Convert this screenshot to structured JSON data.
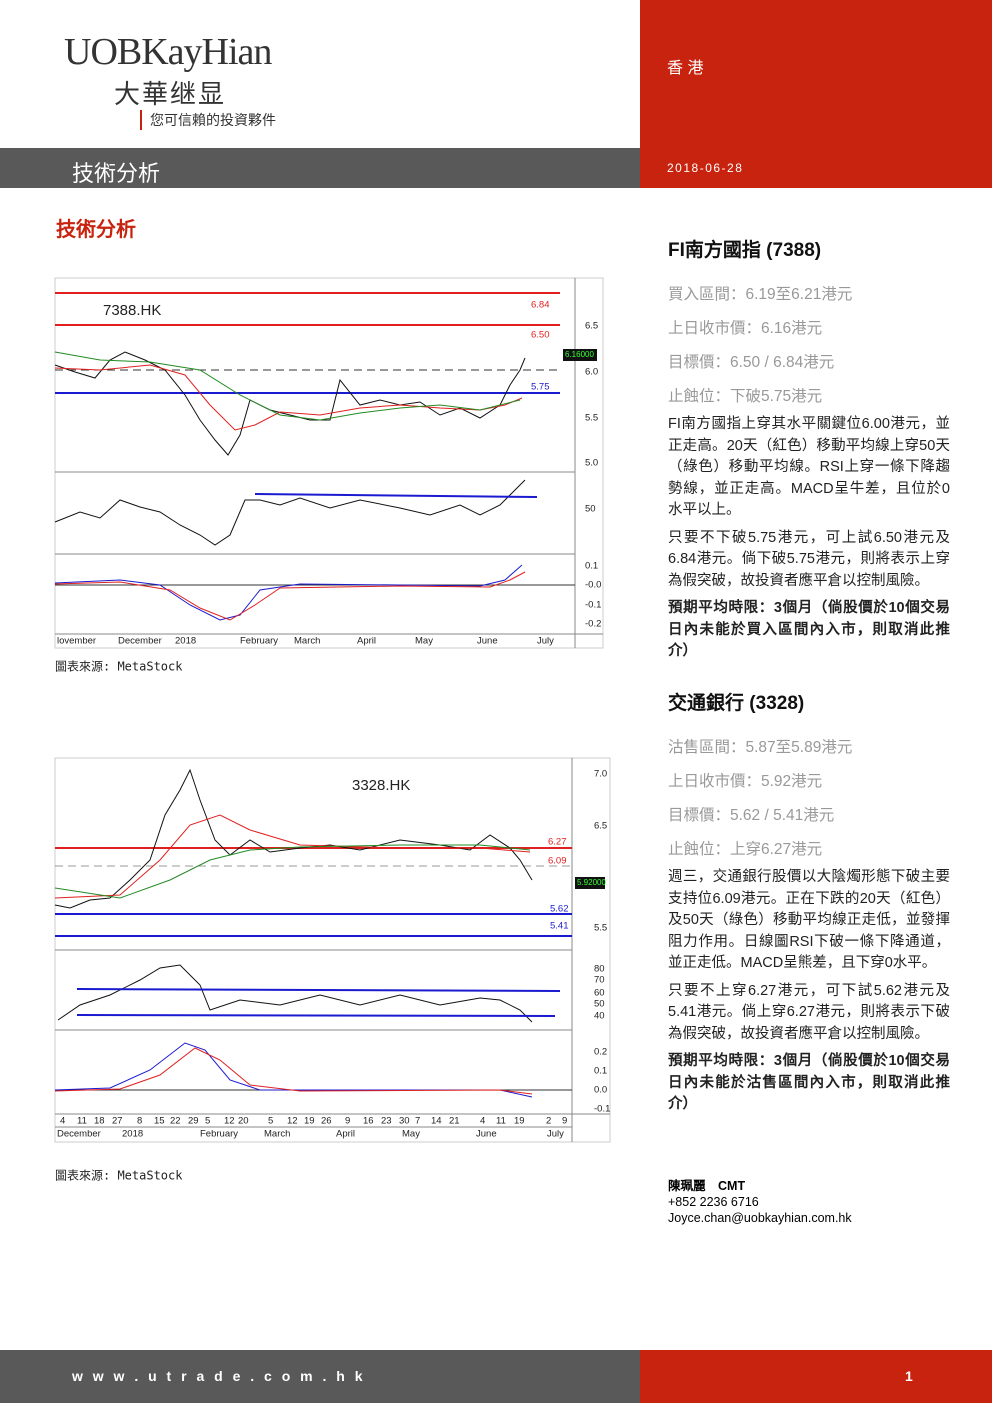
{
  "header": {
    "logo": "UOBKayHian",
    "logo_cn": "大華继显",
    "slogan": "您可信賴的投資夥件",
    "region": "香 港",
    "section": "技術分析",
    "date": "2018-06-28"
  },
  "page_title": "技術分析",
  "stocks": [
    {
      "name": "FI南方國指",
      "code": "(7388)",
      "fields": [
        "買入區間：6.19至6.21港元",
        "上日收市價：6.16港元",
        "目標價：6.50 / 6.84港元",
        "止蝕位：下破5.75港元"
      ],
      "paragraphs": [
        "FI南方國指上穿其水平關鍵位6.00港元，並正走高。20天（紅色）移動平均線上穿50天（綠色）移動平均線。RSI上穿一條下降趨勢線，並正走高。MACD呈牛差，且位於0水平以上。",
        "只要不下破5.75港元，可上試6.50港元及6.84港元。倘下破5.75港元，則將表示上穿為假突破，故投資者應平倉以控制風險。"
      ],
      "note": "預期平均時限：3個月（倘股價於10個交易日內未能於買入區間內入市，則取消此推介）"
    },
    {
      "name": "交通銀行",
      "code": "(3328)",
      "fields": [
        "沽售區間：5.87至5.89港元",
        "上日收市價：5.92港元",
        "目標價：5.62 / 5.41港元",
        "止蝕位：上穿6.27港元"
      ],
      "paragraphs": [
        "週三，交通銀行股價以大陰燭形態下破主要支持位6.09港元。正在下跌的20天（紅色）及50天（綠色）移動平均線正走低，並發揮阻力作用。日線圖RSI下破一條下降通道，並正走低。MACD呈熊差，且下穿0水平。",
        "只要不上穿6.27港元，可下試5.62港元及5.41港元。倘上穿6.27港元，則將表示下破為假突破，故投資者應平倉以控制風險。"
      ],
      "note": "預期平均時限：3個月（倘股價於10個交易日內未能於沽售區間內入市，則取消此推介）"
    }
  ],
  "charts": [
    {
      "ticker": "7388.HK",
      "price_label": "6.16000",
      "levels": [
        "6.84",
        "6.50",
        "5.75"
      ],
      "yticks": [
        "6.5",
        "6.0",
        "5.5",
        "5.0"
      ],
      "rsi_ticks": [
        "50"
      ],
      "macd_ticks": [
        "0.1",
        "-0.0",
        "-0.1",
        "-0.2"
      ],
      "dates": [],
      "months": [
        "lovember",
        "December",
        "2018",
        "February",
        "March",
        "April",
        "May",
        "June",
        "July"
      ],
      "source": "圖表來源: MetaStock"
    },
    {
      "ticker": "3328.HK",
      "price_label": "5.92000",
      "levels": [
        "6.27",
        "6.09",
        "5.62",
        "5.41"
      ],
      "yticks": [
        "7.0",
        "6.5",
        "5.5"
      ],
      "rsi_ticks": [
        "80",
        "70",
        "60",
        "50",
        "40"
      ],
      "macd_ticks": [
        "0.2",
        "0.1",
        "0.0",
        "-0.1"
      ],
      "dates": [
        "4",
        "11",
        "18",
        "27",
        "8",
        "15",
        "22",
        "29",
        "5",
        "12",
        "20",
        "5",
        "12",
        "19",
        "26",
        "9",
        "16",
        "23",
        "30",
        "7",
        "14",
        "21",
        "4",
        "11",
        "19",
        "2",
        "9"
      ],
      "months": [
        "December",
        "2018",
        "February",
        "March",
        "April",
        "May",
        "June",
        "July"
      ],
      "source": "圖表來源: MetaStock"
    }
  ],
  "author": {
    "name": "陳珮麗　CMT",
    "phone": "+852 2236 6716",
    "email": "Joyce.chan@uobkayhian.com.hk"
  },
  "footer": {
    "url": "w w w . u t r a d e . c o m . h k",
    "page": "1"
  }
}
